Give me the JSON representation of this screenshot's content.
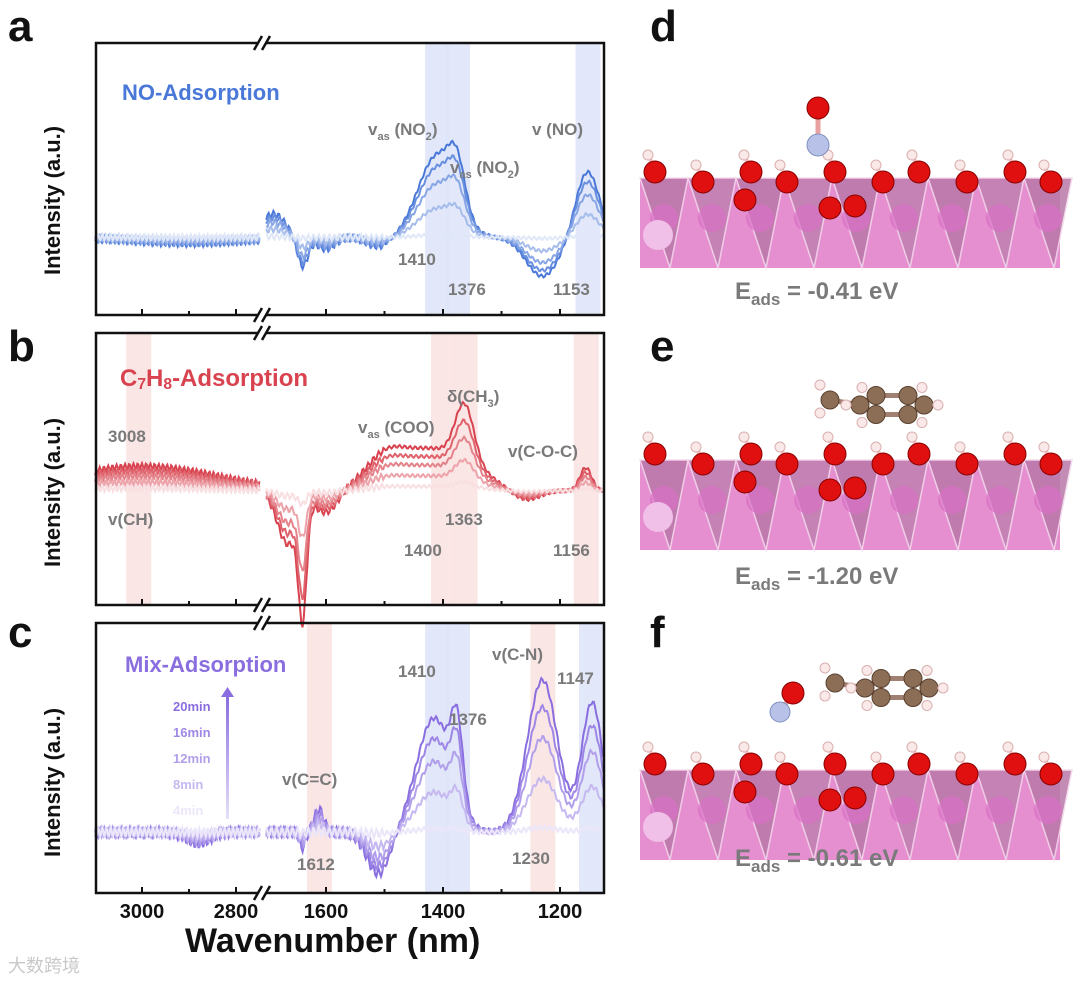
{
  "panel_letters": [
    "a",
    "b",
    "c",
    "d",
    "e",
    "f"
  ],
  "ylabel": "Intensity (a.u.)",
  "xlabel": "Wavenumber (nm)",
  "watermark": "大数跨境",
  "energies": [
    {
      "label": "E",
      "sub": "ads",
      "value": "= -0.41 eV"
    },
    {
      "label": "E",
      "sub": "ads",
      "value": "= -1.20 eV"
    },
    {
      "label": "E",
      "sub": "ads",
      "value": "= -0.61 eV"
    }
  ],
  "chart_data": [
    {
      "type": "line",
      "panel": "a",
      "title": "NO-Adsorption",
      "color": "#4a78d8",
      "x_segments": [
        [
          3100,
          2750
        ],
        [
          1702,
          1125
        ]
      ],
      "xticks": [
        3000,
        2800,
        1600,
        1400,
        1200
      ],
      "ylim": [
        -1,
        2.5
      ],
      "bands": [
        {
          "center": 1410,
          "color": "#dfe6f8"
        },
        {
          "center": 1376,
          "color": "#dfe6f8"
        },
        {
          "center": 1153,
          "color": "#dfe6f8"
        }
      ],
      "annotations": [
        "1410",
        "1376",
        "1153"
      ],
      "labels": [
        {
          "text": "v",
          "sub": "as",
          "rest": " (NO",
          "sub2": "2",
          "end": ")"
        },
        {
          "text": "v",
          "sub": "as",
          "rest": " (NO",
          "sub2": "2",
          "end": ")"
        },
        {
          "text": "v (NO)"
        }
      ],
      "peaks": [
        [
          1410,
          1.05,
          32
        ],
        [
          1376,
          0.55,
          14
        ],
        [
          1153,
          0.85,
          20
        ],
        [
          1640,
          -0.38,
          9
        ],
        [
          1690,
          0.3,
          20
        ],
        [
          1600,
          -0.15,
          15
        ],
        [
          1230,
          -0.5,
          28
        ],
        [
          1510,
          -0.12,
          20
        ],
        [
          2900,
          -0.08,
          120
        ]
      ],
      "series": [
        {
          "name": "20min",
          "scale": 1.0
        },
        {
          "name": "16min",
          "scale": 0.85
        },
        {
          "name": "12min",
          "scale": 0.65
        },
        {
          "name": "8min",
          "scale": 0.35
        },
        {
          "name": "4min",
          "scale": 0.03
        }
      ]
    },
    {
      "type": "line",
      "panel": "b",
      "title_parts": [
        "C",
        "7",
        "H",
        "8",
        "-Adsorption"
      ],
      "color": "#d8434f",
      "x_segments": [
        [
          3100,
          2750
        ],
        [
          1702,
          1125
        ]
      ],
      "xticks": [
        3000,
        2800,
        1600,
        1400,
        1200
      ],
      "ylim": [
        -1.5,
        2.07
      ],
      "bands": [
        {
          "center": 3008,
          "color": "#fbe3e3"
        },
        {
          "center": 1400,
          "color": "#fbe3e3"
        },
        {
          "center": 1363,
          "color": "#fbe3e3"
        },
        {
          "center": 1156,
          "color": "#fbe3e3"
        }
      ],
      "annotations": [
        "3008",
        "v(CH)",
        "1400",
        "1363",
        "1156"
      ],
      "labels": [
        {
          "text": "v",
          "sub": "as",
          "rest": " (COO)"
        },
        {
          "text": "δ(CH",
          "sub2": "3",
          "end": ")"
        },
        {
          "text": "v(C-O-C)"
        }
      ],
      "peaks": [
        [
          3000,
          0.32,
          160
        ],
        [
          1420,
          0.55,
          70
        ],
        [
          1363,
          0.75,
          16
        ],
        [
          1156,
          0.3,
          10
        ],
        [
          1260,
          -0.15,
          25
        ],
        [
          1640,
          -1.45,
          7
        ],
        [
          1665,
          -0.7,
          18
        ],
        [
          1600,
          -0.3,
          20
        ],
        [
          1500,
          0.25,
          30
        ]
      ],
      "series": [
        {
          "name": "20min",
          "scale": 1.0
        },
        {
          "name": "16min",
          "scale": 0.8
        },
        {
          "name": "12min",
          "scale": 0.6
        },
        {
          "name": "8min",
          "scale": 0.35
        },
        {
          "name": "4min",
          "scale": 0.1
        }
      ]
    },
    {
      "type": "line",
      "panel": "c",
      "title": "Mix-Adsorption",
      "color": "#8a6ee0",
      "x_segments": [
        [
          3100,
          2750
        ],
        [
          1702,
          1125
        ]
      ],
      "xticks": [
        3000,
        2800,
        1600,
        1400,
        1200
      ],
      "ylim": [
        -0.8,
        2.75
      ],
      "bands": [
        {
          "center": 1612,
          "color": "#fbe3e3"
        },
        {
          "center": 1410,
          "color": "#dfe6f8"
        },
        {
          "center": 1376,
          "color": "#dfe6f8"
        },
        {
          "center": 1230,
          "color": "#fbe3e3"
        },
        {
          "center": 1147,
          "color": "#dfe6f8"
        }
      ],
      "annotations": [
        "1410",
        "1376",
        "1147",
        "1612",
        "1230",
        "v(C=C)",
        "v(C-N)"
      ],
      "peaks": [
        [
          1415,
          1.5,
          30
        ],
        [
          1376,
          1.0,
          10
        ],
        [
          1230,
          2.0,
          26
        ],
        [
          1145,
          1.7,
          18
        ],
        [
          1612,
          0.3,
          8
        ],
        [
          1510,
          -0.55,
          20
        ],
        [
          1640,
          -0.2,
          5
        ],
        [
          2880,
          -0.15,
          25
        ]
      ],
      "series": [
        {
          "name": "20min",
          "scale": 1.0
        },
        {
          "name": "16min",
          "scale": 0.82
        },
        {
          "name": "12min",
          "scale": 0.62
        },
        {
          "name": "8min",
          "scale": 0.35
        },
        {
          "name": "4min",
          "scale": 0.03
        }
      ],
      "legend": [
        "20min",
        "16min",
        "12min",
        "8min",
        "4min"
      ]
    }
  ]
}
